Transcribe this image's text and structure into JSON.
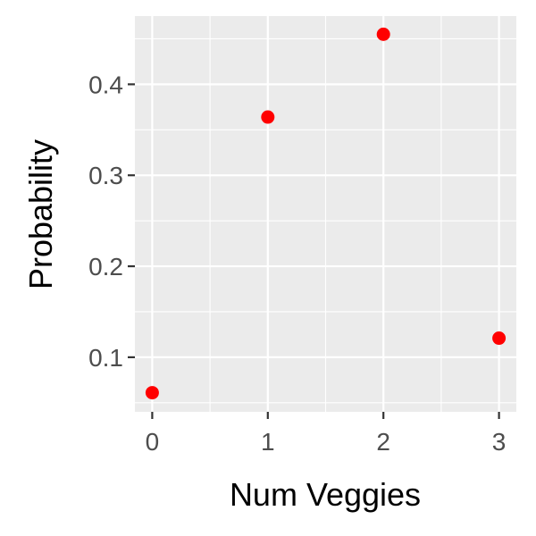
{
  "chart_data": {
    "type": "scatter",
    "title": "",
    "xlabel": "Num Veggies",
    "ylabel": "Probability",
    "x": [
      0,
      1,
      2,
      3
    ],
    "y": [
      0.061,
      0.364,
      0.455,
      0.121
    ],
    "xlim": [
      -0.15,
      3.15
    ],
    "ylim": [
      0.04,
      0.475
    ],
    "xticks": [
      0,
      1,
      2,
      3
    ],
    "xtick_labels": [
      "0",
      "1",
      "2",
      "3"
    ],
    "yticks": [
      0.1,
      0.2,
      0.3,
      0.4
    ],
    "ytick_labels": [
      "0.1",
      "0.2",
      "0.3",
      "0.4"
    ],
    "x_minor_ticks": [
      0.5,
      1.5,
      2.5
    ],
    "y_minor_ticks": [
      0.05,
      0.15,
      0.25,
      0.35,
      0.45
    ],
    "grid": true,
    "point_color": "#ff0000",
    "panel_color": "#ebebeb",
    "grid_color": "#ffffff"
  }
}
